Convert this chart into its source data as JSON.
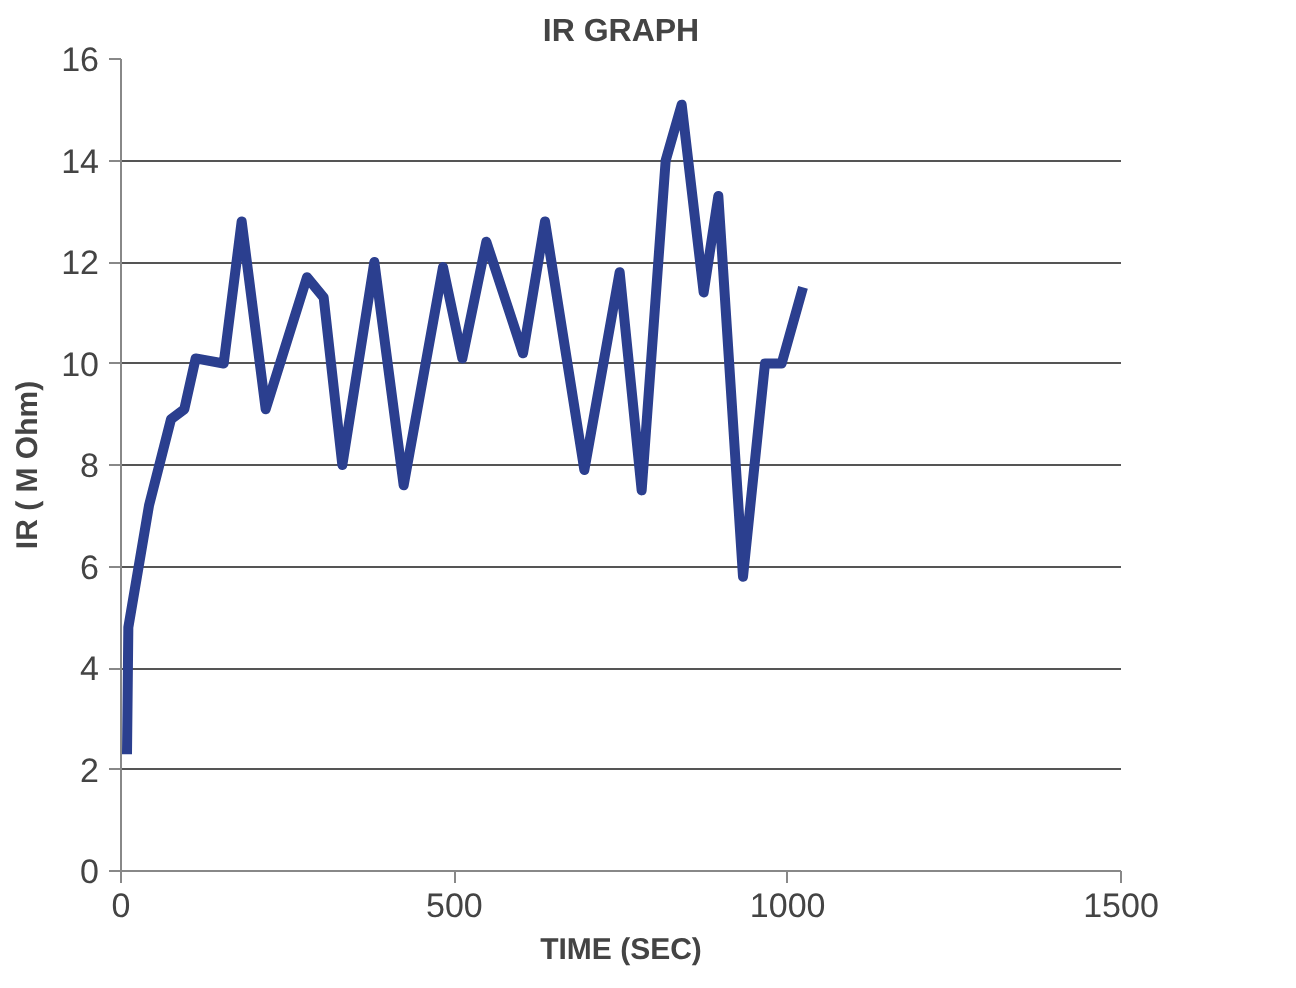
{
  "chart_data": {
    "type": "line",
    "title": "IR GRAPH",
    "xlabel": "TIME (SEC)",
    "ylabel": "IR ( M Ohm)",
    "x": [
      9,
      11,
      42,
      75,
      95,
      112,
      154,
      181,
      217,
      279,
      304,
      332,
      380,
      424,
      483,
      512,
      548,
      603,
      636,
      695,
      748,
      781,
      817,
      841,
      874,
      896,
      933,
      966,
      991,
      1023
    ],
    "series": [
      {
        "color": "#2b3f8f",
        "values": [
          2.3,
          4.8,
          7.2,
          8.9,
          9.1,
          10.1,
          10.0,
          12.8,
          9.1,
          11.7,
          11.3,
          8.0,
          12.0,
          7.6,
          11.9,
          10.1,
          12.4,
          10.2,
          12.8,
          7.9,
          11.8,
          7.5,
          14.0,
          15.1,
          11.4,
          13.3,
          5.8,
          10.0,
          10.0,
          11.5
        ]
      }
    ],
    "xlim": [
      0,
      1500
    ],
    "xticks": [
      0,
      500,
      1000,
      1500
    ],
    "ylim": [
      0,
      16
    ],
    "yticks": [
      0,
      2,
      4,
      6,
      8,
      10,
      12,
      14,
      16
    ],
    "grid": "y",
    "marker": "none",
    "line_style": "solid"
  }
}
